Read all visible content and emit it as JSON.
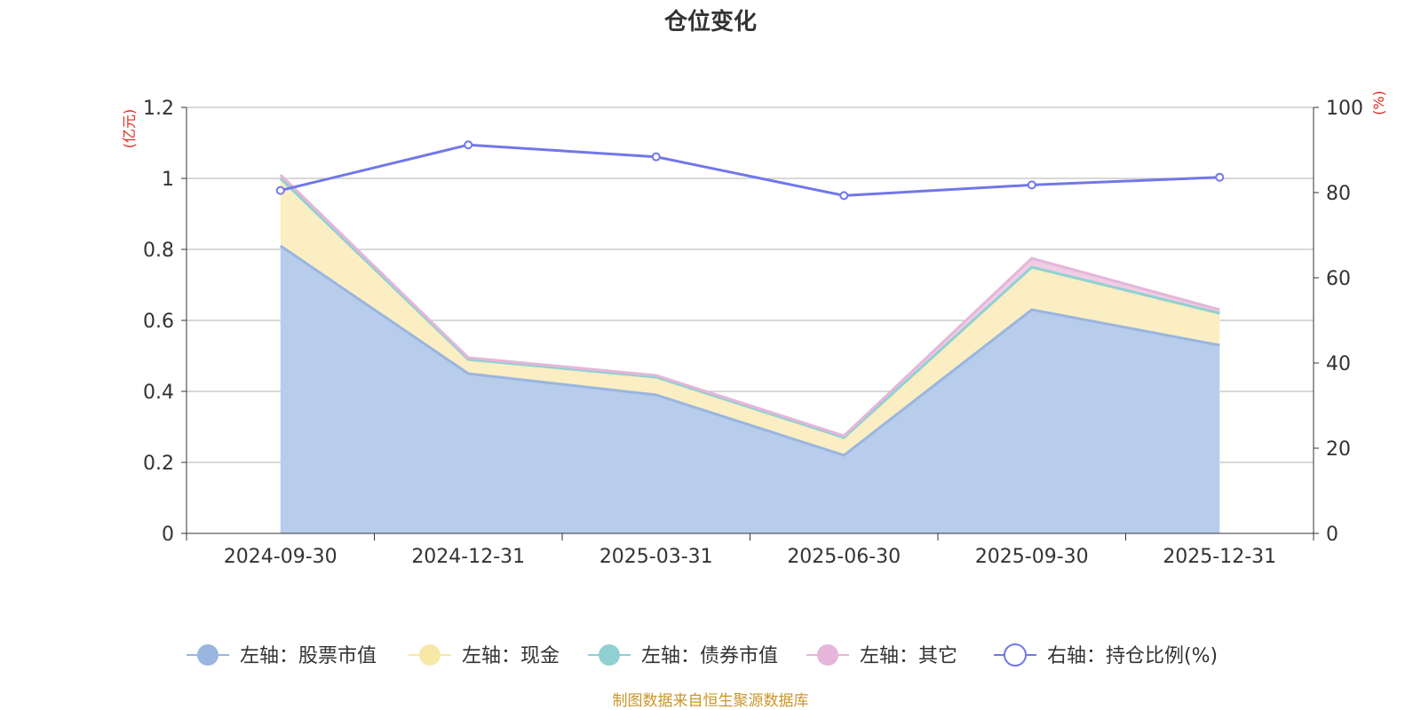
{
  "chart_data": {
    "type": "area",
    "title": "仓位变化",
    "categories": [
      "2024-09-30",
      "2024-12-31",
      "2025-03-31",
      "2025-06-30",
      "2025-09-30",
      "2025-12-31"
    ],
    "left_axis": {
      "unit": "(亿元)",
      "ylim": [
        0,
        1.2
      ],
      "ticks": [
        "0",
        "0.2",
        "0.4",
        "0.6",
        "0.8",
        "1",
        "1.2"
      ]
    },
    "right_axis": {
      "unit": "(%)",
      "ylim": [
        0,
        100
      ],
      "ticks": [
        "0",
        "20",
        "40",
        "60",
        "80",
        "100"
      ]
    },
    "series": [
      {
        "name": "左轴：股票市值",
        "axis": "left",
        "type": "area",
        "stacked": true,
        "color": "#9ab5e0",
        "fill": "#b8cdeb",
        "values": [
          0.81,
          0.45,
          0.39,
          0.22,
          0.63,
          0.53
        ]
      },
      {
        "name": "左轴：现金",
        "axis": "left",
        "type": "area",
        "stacked": true,
        "color": "#f7e8a8",
        "fill": "#faeec2",
        "values": [
          0.19,
          0.04,
          0.05,
          0.05,
          0.12,
          0.09
        ]
      },
      {
        "name": "左轴：债券市值",
        "axis": "left",
        "type": "area",
        "stacked": true,
        "color": "#90d0d3",
        "fill": "#b5e2e4",
        "values": [
          0,
          0,
          0,
          0,
          0,
          0
        ]
      },
      {
        "name": "左轴：其它",
        "axis": "left",
        "type": "area",
        "stacked": true,
        "color": "#e5b6d9",
        "fill": "#efcde5",
        "values": [
          0.01,
          0.005,
          0.005,
          0.005,
          0.025,
          0.01
        ]
      },
      {
        "name": "右轴：持仓比例(%)",
        "axis": "right",
        "type": "line",
        "color": "#7177ea",
        "values": [
          80.5,
          91.2,
          88.4,
          79.3,
          81.8,
          83.6
        ]
      }
    ],
    "grid": true,
    "legend_position": "bottom"
  },
  "colors": {
    "unit_label": "#e3281c",
    "footer": "#c9962c",
    "axis": "#333333",
    "grid": "#cccccc"
  },
  "footer": "制图数据来自恒生聚源数据库"
}
